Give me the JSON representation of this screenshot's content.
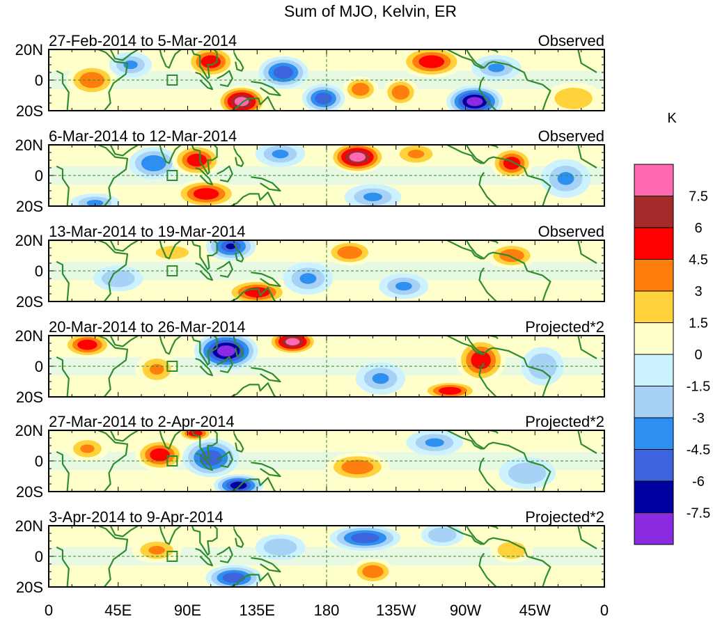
{
  "title": "Sum of MJO, Kelvin, ER",
  "lat_labels": [
    "20N",
    "0",
    "20S"
  ],
  "lon_labels": [
    "0",
    "45E",
    "90E",
    "135E",
    "180",
    "135W",
    "90W",
    "45W",
    "0"
  ],
  "colors": {
    "land": "#2e8b2e",
    "levels": [
      "#ff69b4",
      "#a52a2a",
      "#ff0000",
      "#ff7f0e",
      "#ffd23c",
      "#ffffcc",
      "#ccf2ff",
      "#a7d2f5",
      "#2d8ff0",
      "#3c64dc",
      "#0000a0",
      "#8a2be2"
    ],
    "zero_line": "#2e8b2e"
  },
  "colorbar": {
    "unit": "K",
    "labels": [
      "7.5",
      "6",
      "4.5",
      "3",
      "1.5",
      "0",
      "-1.5",
      "-3",
      "-4.5",
      "-6",
      "-7.5"
    ]
  },
  "panels": [
    {
      "dates": "27-Feb-2014 to 5-Mar-2014",
      "tag": "Observed",
      "blobs": [
        {
          "lon": 28,
          "lat": 0,
          "rx": 14,
          "ry": 10,
          "v": 4
        },
        {
          "lon": 53,
          "lat": 10,
          "rx": 12,
          "ry": 8,
          "v": -3
        },
        {
          "lon": 105,
          "lat": 12,
          "rx": 14,
          "ry": 10,
          "v": 5
        },
        {
          "lon": 125,
          "lat": -14,
          "rx": 14,
          "ry": 10,
          "v": 8
        },
        {
          "lon": 152,
          "lat": 5,
          "rx": 14,
          "ry": 10,
          "v": -5
        },
        {
          "lon": 178,
          "lat": -12,
          "rx": 12,
          "ry": 9,
          "v": -5
        },
        {
          "lon": 202,
          "lat": -6,
          "rx": 10,
          "ry": 8,
          "v": 4
        },
        {
          "lon": 228,
          "lat": -8,
          "rx": 10,
          "ry": 9,
          "v": 4
        },
        {
          "lon": 248,
          "lat": 12,
          "rx": 18,
          "ry": 10,
          "v": 5
        },
        {
          "lon": 276,
          "lat": -14,
          "rx": 16,
          "ry": 10,
          "v": -8
        },
        {
          "lon": 290,
          "lat": 8,
          "rx": 14,
          "ry": 8,
          "v": -3
        },
        {
          "lon": 340,
          "lat": -12,
          "rx": 16,
          "ry": 10,
          "v": 2
        }
      ]
    },
    {
      "dates": "6-Mar-2014 to 12-Mar-2014",
      "tag": "Observed",
      "blobs": [
        {
          "lon": 68,
          "lat": 8,
          "rx": 14,
          "ry": 10,
          "v": -4
        },
        {
          "lon": 96,
          "lat": 10,
          "rx": 14,
          "ry": 10,
          "v": 5
        },
        {
          "lon": 102,
          "lat": -12,
          "rx": 18,
          "ry": 9,
          "v": 5
        },
        {
          "lon": 150,
          "lat": 14,
          "rx": 14,
          "ry": 8,
          "v": -3
        },
        {
          "lon": 200,
          "lat": 12,
          "rx": 16,
          "ry": 10,
          "v": 8
        },
        {
          "lon": 238,
          "lat": 14,
          "rx": 14,
          "ry": 8,
          "v": 3
        },
        {
          "lon": 210,
          "lat": -14,
          "rx": 16,
          "ry": 8,
          "v": -3
        },
        {
          "lon": 300,
          "lat": 8,
          "rx": 12,
          "ry": 10,
          "v": 5
        },
        {
          "lon": 335,
          "lat": -2,
          "rx": 14,
          "ry": 12,
          "v": -3
        },
        {
          "lon": 30,
          "lat": -18,
          "rx": 14,
          "ry": 6,
          "v": -3
        }
      ]
    },
    {
      "dates": "13-Mar-2014 to 19-Mar-2014",
      "tag": "Observed",
      "blobs": [
        {
          "lon": 118,
          "lat": 16,
          "rx": 14,
          "ry": 9,
          "v": -6
        },
        {
          "lon": 135,
          "lat": -14,
          "rx": 18,
          "ry": 8,
          "v": 5
        },
        {
          "lon": 195,
          "lat": 12,
          "rx": 14,
          "ry": 8,
          "v": 4
        },
        {
          "lon": 168,
          "lat": -5,
          "rx": 14,
          "ry": 10,
          "v": -3
        },
        {
          "lon": 300,
          "lat": 10,
          "rx": 14,
          "ry": 8,
          "v": 4
        },
        {
          "lon": 230,
          "lat": -10,
          "rx": 14,
          "ry": 8,
          "v": -3
        },
        {
          "lon": 45,
          "lat": -5,
          "rx": 14,
          "ry": 8,
          "v": -2
        },
        {
          "lon": 80,
          "lat": 12,
          "rx": 14,
          "ry": 6,
          "v": 2
        }
      ]
    },
    {
      "dates": "20-Mar-2014 to 26-Mar-2014",
      "tag": "Projected*2",
      "blobs": [
        {
          "lon": 25,
          "lat": 14,
          "rx": 14,
          "ry": 8,
          "v": 5
        },
        {
          "lon": 115,
          "lat": 10,
          "rx": 18,
          "ry": 12,
          "v": -8
        },
        {
          "lon": 158,
          "lat": 16,
          "rx": 14,
          "ry": 8,
          "v": 8
        },
        {
          "lon": 70,
          "lat": -2,
          "rx": 12,
          "ry": 10,
          "v": 3
        },
        {
          "lon": 215,
          "lat": -8,
          "rx": 14,
          "ry": 10,
          "v": -3
        },
        {
          "lon": 280,
          "lat": 4,
          "rx": 14,
          "ry": 14,
          "v": 5
        },
        {
          "lon": 260,
          "lat": -16,
          "rx": 16,
          "ry": 6,
          "v": 5
        },
        {
          "lon": 320,
          "lat": 0,
          "rx": 12,
          "ry": 12,
          "v": -2
        }
      ]
    },
    {
      "dates": "27-Mar-2014 to 2-Apr-2014",
      "tag": "Projected*2",
      "blobs": [
        {
          "lon": 72,
          "lat": 4,
          "rx": 14,
          "ry": 10,
          "v": 5
        },
        {
          "lon": 105,
          "lat": 2,
          "rx": 16,
          "ry": 12,
          "v": -5
        },
        {
          "lon": 123,
          "lat": -16,
          "rx": 14,
          "ry": 7,
          "v": -7
        },
        {
          "lon": 25,
          "lat": 8,
          "rx": 12,
          "ry": 8,
          "v": 3
        },
        {
          "lon": 200,
          "lat": -4,
          "rx": 18,
          "ry": 9,
          "v": 4
        },
        {
          "lon": 95,
          "lat": 18,
          "rx": 10,
          "ry": 5,
          "v": 5
        },
        {
          "lon": 250,
          "lat": 12,
          "rx": 16,
          "ry": 8,
          "v": -3
        },
        {
          "lon": 310,
          "lat": -8,
          "rx": 16,
          "ry": 10,
          "v": -2
        }
      ]
    },
    {
      "dates": "3-Apr-2014 to 9-Apr-2014",
      "tag": "Projected*2",
      "blobs": [
        {
          "lon": 70,
          "lat": 4,
          "rx": 14,
          "ry": 8,
          "v": 3
        },
        {
          "lon": 120,
          "lat": -14,
          "rx": 16,
          "ry": 8,
          "v": -5
        },
        {
          "lon": 205,
          "lat": 12,
          "rx": 20,
          "ry": 8,
          "v": -5
        },
        {
          "lon": 210,
          "lat": -10,
          "rx": 12,
          "ry": 8,
          "v": 4
        },
        {
          "lon": 255,
          "lat": 14,
          "rx": 12,
          "ry": 7,
          "v": -2
        },
        {
          "lon": 300,
          "lat": 4,
          "rx": 12,
          "ry": 8,
          "v": 2
        },
        {
          "lon": 150,
          "lat": 6,
          "rx": 14,
          "ry": 8,
          "v": -2
        }
      ]
    }
  ]
}
